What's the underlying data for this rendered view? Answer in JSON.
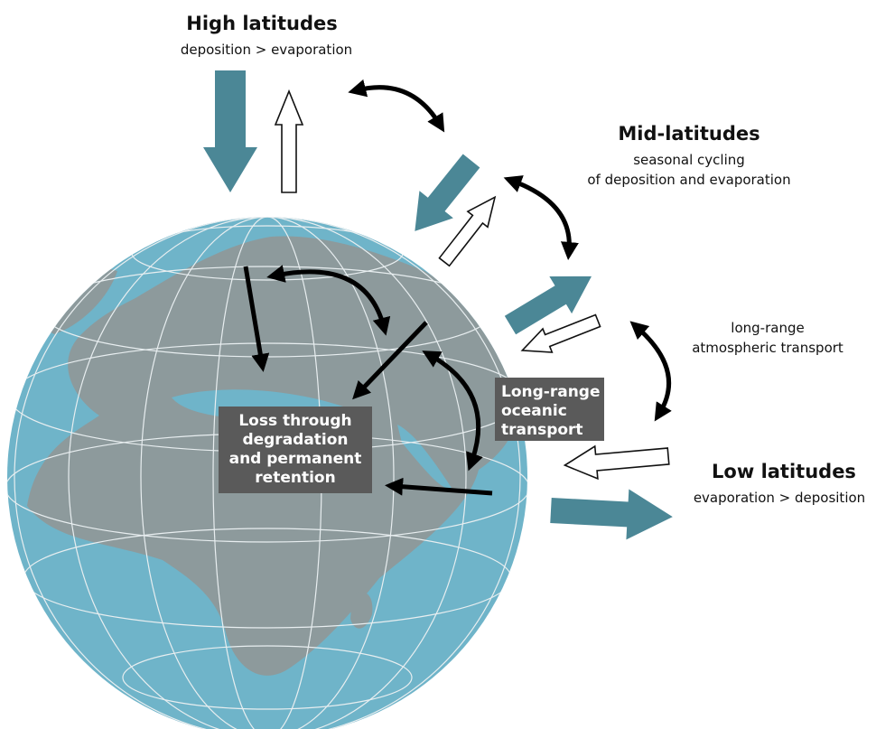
{
  "high_latitudes": {
    "title": "High latitudes",
    "lines": [
      "deposition > evaporation"
    ]
  },
  "mid_latitudes": {
    "title": "Mid-latitudes",
    "lines": [
      "seasonal cycling",
      "of deposition and evaporation"
    ]
  },
  "atmospheric_transport": {
    "lines": [
      "long-range",
      "atmospheric transport"
    ]
  },
  "low_latitudes": {
    "title": "Low latitudes",
    "lines": [
      "evaporation > deposition"
    ]
  },
  "oceanic_box": {
    "lines": [
      "Long-range",
      "oceanic",
      "transport"
    ]
  },
  "loss_box": {
    "lines": [
      "Loss through",
      "degradation",
      "and permanent",
      "retention"
    ]
  }
}
